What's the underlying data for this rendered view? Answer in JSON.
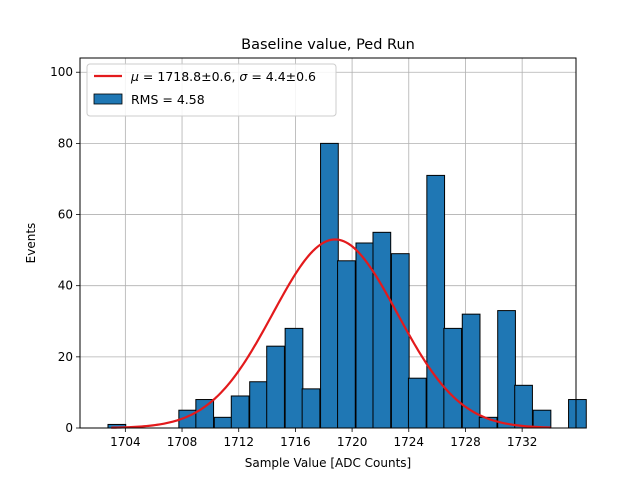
{
  "chart_data": {
    "type": "bar",
    "title": "Baseline value, Ped Run",
    "xlabel": "Sample Value [ADC Counts]",
    "ylabel": "Events",
    "xlim": [
      1700.8,
      1735.8
    ],
    "ylim": [
      0,
      104
    ],
    "x_ticks": [
      1704,
      1708,
      1712,
      1716,
      1720,
      1724,
      1728,
      1732
    ],
    "y_ticks": [
      0,
      20,
      40,
      60,
      80,
      100
    ],
    "grid": true,
    "legend_position": "top-left",
    "histogram": {
      "name": "RMS = 4.58",
      "color": "#1f77b4",
      "bin_width": 1.25,
      "bins": [
        {
          "x": 1703.4,
          "count": 1
        },
        {
          "x": 1708.4,
          "count": 5
        },
        {
          "x": 1709.6,
          "count": 8
        },
        {
          "x": 1710.9,
          "count": 3
        },
        {
          "x": 1712.1,
          "count": 9
        },
        {
          "x": 1713.4,
          "count": 13
        },
        {
          "x": 1714.6,
          "count": 23
        },
        {
          "x": 1715.9,
          "count": 28
        },
        {
          "x": 1717.1,
          "count": 11
        },
        {
          "x": 1718.4,
          "count": 80
        },
        {
          "x": 1719.6,
          "count": 47
        },
        {
          "x": 1720.9,
          "count": 52
        },
        {
          "x": 1722.1,
          "count": 55
        },
        {
          "x": 1723.4,
          "count": 49
        },
        {
          "x": 1724.6,
          "count": 14
        },
        {
          "x": 1725.9,
          "count": 71
        },
        {
          "x": 1727.1,
          "count": 28
        },
        {
          "x": 1728.4,
          "count": 32
        },
        {
          "x": 1729.6,
          "count": 3
        },
        {
          "x": 1730.9,
          "count": 33
        },
        {
          "x": 1732.1,
          "count": 12
        },
        {
          "x": 1733.4,
          "count": 5
        },
        {
          "x": 1734.6,
          "count": 0
        },
        {
          "x": 1735.9,
          "count": 8
        }
      ]
    },
    "fit": {
      "name": "μ = 1718.8±0.6, σ = 4.4±0.6",
      "label_mu_symbol": "μ",
      "label_mu_text": " = 1718.8±0.6, ",
      "label_sigma_symbol": "σ",
      "label_sigma_text": " = 4.4±0.6",
      "color": "#e31a1c",
      "mu": 1718.8,
      "sigma": 4.4,
      "amplitude": 53,
      "x_range": [
        1703,
        1734
      ]
    }
  }
}
